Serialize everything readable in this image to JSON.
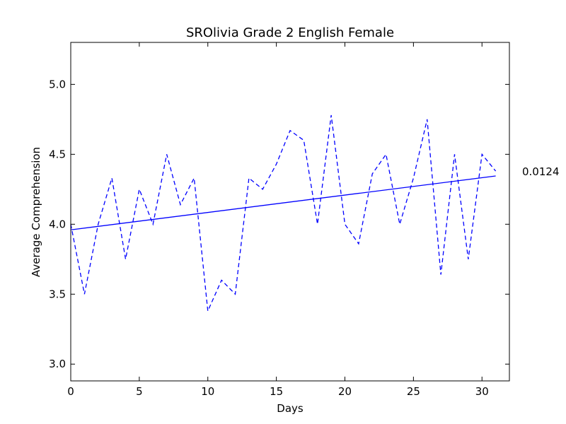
{
  "chart_data": {
    "type": "line",
    "title": "SROlivia Grade 2 English Female",
    "xlabel": "Days",
    "ylabel": "Average Comprehension",
    "xlim": [
      0,
      32
    ],
    "ylim": [
      2.88,
      5.3
    ],
    "xticks": [
      0,
      5,
      10,
      15,
      20,
      25,
      30
    ],
    "yticks": [
      3.0,
      3.5,
      4.0,
      4.5,
      5.0
    ],
    "ytick_labels": [
      "3.0",
      "3.5",
      "4.0",
      "4.5",
      "5.0"
    ],
    "grid": false,
    "series": [
      {
        "style": "dashed",
        "color": "#0000ff",
        "x": [
          0,
          1,
          2,
          3,
          4,
          5,
          6,
          7,
          8,
          9,
          10,
          11,
          12,
          13,
          14,
          15,
          16,
          17,
          18,
          19,
          20,
          21,
          22,
          23,
          24,
          25,
          26,
          27,
          28,
          29,
          30,
          31
        ],
        "values": [
          4.0,
          3.5,
          4.0,
          4.33,
          3.75,
          4.25,
          4.0,
          4.5,
          4.14,
          4.33,
          3.38,
          3.6,
          3.5,
          4.33,
          4.25,
          4.43,
          4.67,
          4.6,
          4.0,
          4.78,
          4.0,
          3.86,
          4.36,
          4.5,
          4.0,
          4.33,
          4.75,
          3.64,
          4.5,
          3.75,
          4.5,
          4.38
        ]
      },
      {
        "style": "solid",
        "color": "#0000ff",
        "kind": "trend",
        "x": [
          0,
          31
        ],
        "values": [
          3.96,
          4.345
        ]
      }
    ],
    "annotation": "0.0124"
  }
}
